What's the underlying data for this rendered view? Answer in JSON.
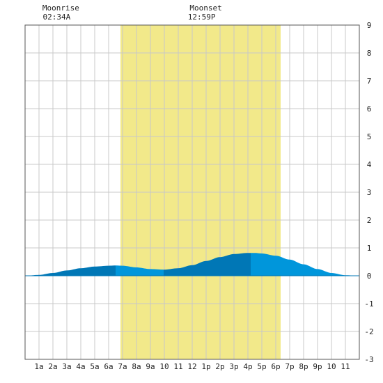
{
  "chart_data": {
    "type": "area",
    "title": "",
    "xlabel": "",
    "ylabel": "",
    "x_range": [
      0,
      24
    ],
    "ylim": [
      -3,
      9
    ],
    "yticks": [
      9,
      8,
      7,
      6,
      5,
      4,
      3,
      2,
      1,
      0,
      -1,
      -2,
      -3
    ],
    "xtick_labels": [
      "1a",
      "2a",
      "3a",
      "4a",
      "5a",
      "6a",
      "7a",
      "8a",
      "9a",
      "10",
      "11",
      "12",
      "1p",
      "2p",
      "3p",
      "4p",
      "5p",
      "6p",
      "7p",
      "8p",
      "9p",
      "10",
      "11"
    ],
    "grid": true,
    "daylight": {
      "start": 6.85,
      "end": 18.35,
      "color": "#f2e98a"
    },
    "annotations": [
      {
        "label": "Moonrise",
        "time": "02:34A",
        "x": 2.57
      },
      {
        "label": "Moonset",
        "time": "12:59P",
        "x": 12.98
      }
    ],
    "series": [
      {
        "x": [
          0,
          1,
          2,
          3,
          4,
          5,
          6,
          6.5,
          7,
          8,
          9,
          10,
          11,
          12,
          13,
          14,
          15,
          16,
          16.5,
          17,
          18,
          19,
          20,
          21,
          22,
          23,
          24
        ],
        "values": [
          0.0,
          0.03,
          0.1,
          0.19,
          0.27,
          0.33,
          0.36,
          0.37,
          0.36,
          0.3,
          0.24,
          0.22,
          0.27,
          0.38,
          0.53,
          0.67,
          0.78,
          0.82,
          0.82,
          0.8,
          0.72,
          0.58,
          0.41,
          0.24,
          0.1,
          0.02,
          0.0
        ]
      }
    ],
    "fill_colors": {
      "dark": "#0077b6",
      "light": "#0096db"
    },
    "color_bands": [
      {
        "from": 0,
        "to": 6.5,
        "shade": "dark"
      },
      {
        "from": 6.5,
        "to": 9.95,
        "shade": "light"
      },
      {
        "from": 9.95,
        "to": 16.2,
        "shade": "dark"
      },
      {
        "from": 16.2,
        "to": 24,
        "shade": "light"
      }
    ]
  }
}
